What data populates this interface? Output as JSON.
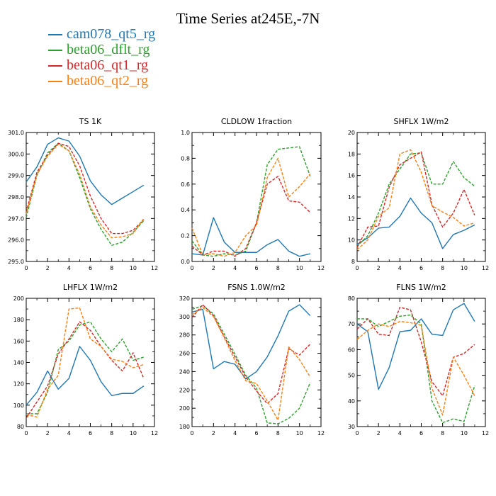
{
  "title": "Time Series at245E,-7N",
  "legend": [
    {
      "name": "cam078_qt5_rg",
      "color": "#1f77b4",
      "dash": "solid"
    },
    {
      "name": "beta06_dflt_rg",
      "color": "#2ca02c",
      "dash": "dashed"
    },
    {
      "name": "beta06_qt1_rg",
      "color": "#d62728",
      "dash": "dashed"
    },
    {
      "name": "beta06_qt2_rg",
      "color": "#ff7f0e",
      "dash": "dashed"
    }
  ],
  "chart_data": [
    {
      "type": "line",
      "title": "TS   1K",
      "x": [
        0,
        1,
        2,
        3,
        4,
        5,
        6,
        7,
        8,
        9,
        10,
        11
      ],
      "xlim": [
        0,
        12
      ],
      "xticks": [
        0,
        2,
        4,
        6,
        8,
        10,
        12
      ],
      "ylim": [
        295.0,
        301.0
      ],
      "yticks": [
        295.0,
        296.0,
        297.0,
        298.0,
        299.0,
        300.0,
        301.0
      ],
      "ytick_labels": [
        "295.0",
        "296.0",
        "297.0",
        "298.0",
        "299.0",
        "300.0",
        "301.0"
      ],
      "series": [
        {
          "name": "cam078_qt5_rg",
          "values": [
            298.7,
            299.4,
            300.45,
            300.75,
            300.6,
            299.9,
            298.75,
            298.1,
            297.65,
            297.95,
            298.25,
            298.55
          ]
        },
        {
          "name": "beta06_dflt_rg",
          "values": [
            297.05,
            299.0,
            300.05,
            300.5,
            300.15,
            298.9,
            297.45,
            296.5,
            295.75,
            295.9,
            296.35,
            296.9
          ]
        },
        {
          "name": "beta06_qt1_rg",
          "values": [
            297.3,
            299.15,
            299.95,
            300.5,
            300.35,
            299.45,
            298.05,
            297.0,
            296.3,
            296.3,
            296.45,
            296.95
          ]
        },
        {
          "name": "beta06_qt2_rg",
          "values": [
            297.2,
            299.05,
            299.9,
            300.45,
            300.15,
            299.05,
            297.55,
            296.7,
            296.1,
            296.15,
            296.3,
            297.0
          ]
        }
      ]
    },
    {
      "type": "line",
      "title": "CLDLOW   1fraction",
      "x": [
        0,
        1,
        2,
        3,
        4,
        5,
        6,
        7,
        8,
        9,
        10,
        11
      ],
      "xlim": [
        0,
        12
      ],
      "xticks": [
        0,
        2,
        4,
        6,
        8,
        10,
        12
      ],
      "ylim": [
        0.0,
        1.0
      ],
      "yticks": [
        0.0,
        0.2,
        0.4,
        0.6,
        0.8,
        1.0
      ],
      "ytick_labels": [
        "0.0",
        "0.2",
        "0.4",
        "0.6",
        "0.8",
        "1.0"
      ],
      "series": [
        {
          "name": "cam078_qt5_rg",
          "values": [
            0.06,
            0.05,
            0.34,
            0.15,
            0.07,
            0.07,
            0.07,
            0.13,
            0.17,
            0.08,
            0.04,
            0.06
          ]
        },
        {
          "name": "beta06_dflt_rg",
          "values": [
            0.16,
            0.05,
            0.04,
            0.06,
            0.05,
            0.08,
            0.3,
            0.75,
            0.87,
            0.88,
            0.89,
            0.66
          ]
        },
        {
          "name": "beta06_qt1_rg",
          "values": [
            0.12,
            0.05,
            0.08,
            0.08,
            0.04,
            0.1,
            0.3,
            0.6,
            0.66,
            0.47,
            0.46,
            0.38
          ]
        },
        {
          "name": "beta06_qt2_rg",
          "values": [
            0.26,
            0.05,
            0.06,
            0.04,
            0.07,
            0.2,
            0.28,
            0.65,
            0.8,
            0.5,
            0.58,
            0.68
          ]
        }
      ]
    },
    {
      "type": "line",
      "title": "SHFLX   1W/m2",
      "x": [
        0,
        1,
        2,
        3,
        4,
        5,
        6,
        7,
        8,
        9,
        10,
        11
      ],
      "xlim": [
        0,
        12
      ],
      "xticks": [
        0,
        2,
        4,
        6,
        8,
        10,
        12
      ],
      "ylim": [
        8,
        20
      ],
      "yticks": [
        8,
        10,
        12,
        14,
        16,
        18,
        20
      ],
      "ytick_labels": [
        "8",
        "10",
        "12",
        "14",
        "16",
        "18",
        "20"
      ],
      "series": [
        {
          "name": "cam078_qt5_rg",
          "values": [
            9.6,
            10.2,
            11.1,
            11.2,
            12.2,
            13.9,
            12.5,
            11.6,
            9.2,
            10.5,
            10.9,
            11.4
          ]
        },
        {
          "name": "beta06_dflt_rg",
          "values": [
            9.4,
            10.4,
            12.5,
            15.2,
            16.6,
            18.0,
            18.1,
            15.2,
            15.2,
            17.3,
            15.8,
            15.0
          ]
        },
        {
          "name": "beta06_qt1_rg",
          "values": [
            9.3,
            11.2,
            11.3,
            14.9,
            17.0,
            17.6,
            18.2,
            13.3,
            11.2,
            12.5,
            14.7,
            12.3
          ]
        },
        {
          "name": "beta06_qt2_rg",
          "values": [
            9.1,
            10.0,
            12.2,
            13.0,
            18.0,
            18.4,
            16.3,
            13.2,
            12.6,
            12.1,
            11.3,
            11.6
          ]
        }
      ]
    },
    {
      "type": "line",
      "title": "LHFLX   1W/m2",
      "x": [
        0,
        1,
        2,
        3,
        4,
        5,
        6,
        7,
        8,
        9,
        10,
        11
      ],
      "xlim": [
        0,
        12
      ],
      "xticks": [
        0,
        2,
        4,
        6,
        8,
        10,
        12
      ],
      "ylim": [
        80,
        200
      ],
      "yticks": [
        80,
        100,
        120,
        140,
        160,
        180,
        200
      ],
      "ytick_labels": [
        "80",
        "100",
        "120",
        "140",
        "160",
        "180",
        "200"
      ],
      "series": [
        {
          "name": "cam078_qt5_rg",
          "values": [
            100,
            112,
            132,
            115,
            125,
            155,
            142,
            122,
            109,
            111,
            111,
            118
          ]
        },
        {
          "name": "beta06_dflt_rg",
          "values": [
            92,
            92,
            112,
            152,
            160,
            175,
            178,
            162,
            150,
            162,
            142,
            145
          ]
        },
        {
          "name": "beta06_qt1_rg",
          "values": [
            88,
            103,
            118,
            148,
            162,
            178,
            170,
            155,
            142,
            132,
            149,
            125
          ]
        },
        {
          "name": "beta06_qt2_rg",
          "values": [
            91,
            89,
            115,
            128,
            190,
            191,
            162,
            155,
            143,
            141,
            135,
            138
          ]
        }
      ]
    },
    {
      "type": "line",
      "title": "FSNS   1.0W/m2",
      "x": [
        0,
        1,
        2,
        3,
        4,
        5,
        6,
        7,
        8,
        9,
        10,
        11
      ],
      "xlim": [
        0,
        12
      ],
      "xticks": [
        0,
        2,
        4,
        6,
        8,
        10,
        12
      ],
      "ylim": [
        180,
        320
      ],
      "yticks": [
        180,
        200,
        220,
        240,
        260,
        280,
        300,
        320
      ],
      "ytick_labels": [
        "180",
        "200",
        "220",
        "240",
        "260",
        "280",
        "300",
        "320"
      ],
      "series": [
        {
          "name": "cam078_qt5_rg",
          "values": [
            305,
            308,
            243,
            251,
            248,
            232,
            240,
            256,
            279,
            306,
            313,
            301
          ]
        },
        {
          "name": "beta06_dflt_rg",
          "values": [
            308,
            312,
            303,
            281,
            259,
            236,
            222,
            184,
            183,
            189,
            200,
            228
          ]
        },
        {
          "name": "beta06_qt1_rg",
          "values": [
            299,
            313,
            301,
            278,
            256,
            234,
            219,
            205,
            216,
            265,
            258,
            270
          ]
        },
        {
          "name": "beta06_qt2_rg",
          "values": [
            302,
            310,
            300,
            277,
            252,
            230,
            227,
            208,
            187,
            267,
            253,
            234
          ]
        }
      ]
    },
    {
      "type": "line",
      "title": "FLNS   1W/m2",
      "x": [
        0,
        1,
        2,
        3,
        4,
        5,
        6,
        7,
        8,
        9,
        10,
        11
      ],
      "xlim": [
        0,
        12
      ],
      "xticks": [
        0,
        2,
        4,
        6,
        8,
        10,
        12
      ],
      "ylim": [
        30,
        80
      ],
      "yticks": [
        30,
        40,
        50,
        60,
        70,
        80
      ],
      "ytick_labels": [
        "30",
        "40",
        "50",
        "60",
        "70",
        "80"
      ],
      "series": [
        {
          "name": "cam078_qt5_rg",
          "values": [
            70,
            67,
            44.5,
            53,
            67,
            67.5,
            72,
            66,
            65.5,
            75.5,
            78,
            71
          ]
        },
        {
          "name": "beta06_dflt_rg",
          "values": [
            72,
            72,
            69,
            71,
            73,
            73.5,
            70,
            40,
            31.5,
            33,
            32,
            46
          ]
        },
        {
          "name": "beta06_qt1_rg",
          "values": [
            68,
            72,
            66,
            65.5,
            76.5,
            75.5,
            63,
            47.5,
            42,
            57,
            58.5,
            62
          ]
        },
        {
          "name": "beta06_qt2_rg",
          "values": [
            64,
            67.5,
            70,
            69,
            71,
            70.5,
            69.5,
            45,
            34.5,
            57,
            50,
            42
          ]
        }
      ]
    }
  ]
}
